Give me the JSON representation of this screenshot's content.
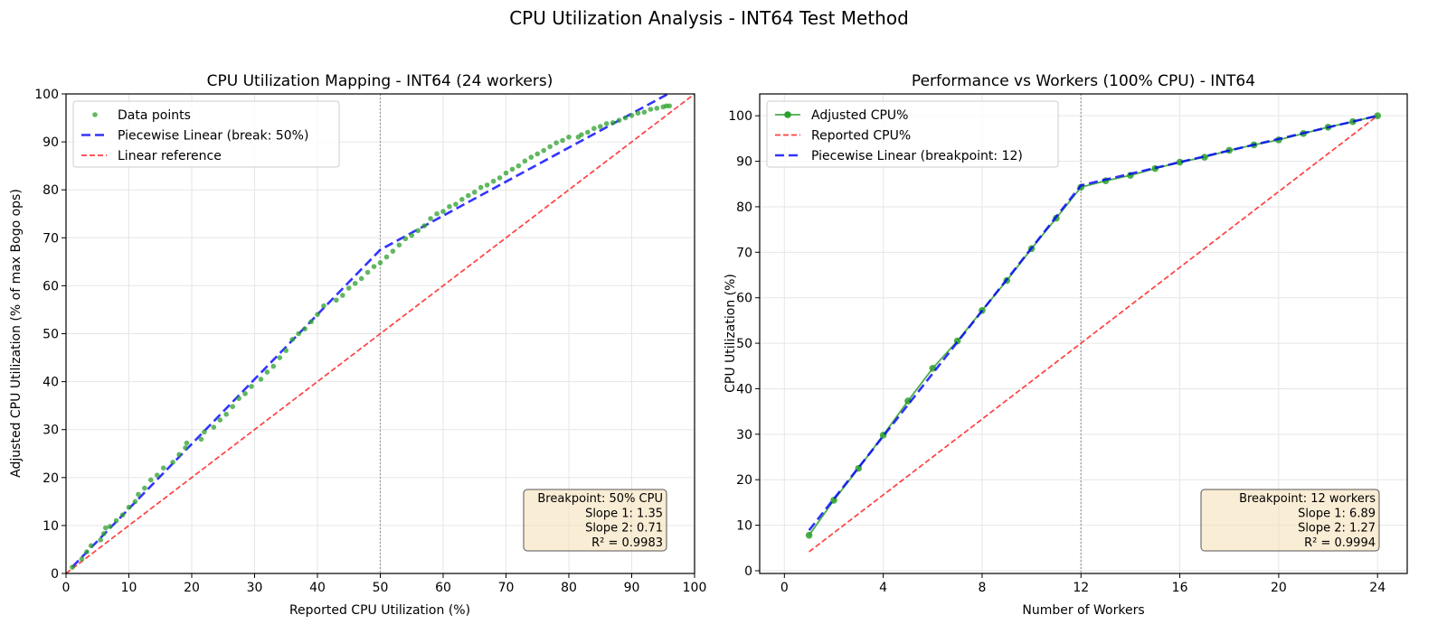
{
  "suptitle": "CPU Utilization Analysis - INT64 Test Method",
  "colors": {
    "data": "#2ca02c",
    "piecewise": "#0000ff",
    "reference": "#ff0000",
    "annotation_bg": "#f5deb3"
  },
  "chart_data": [
    {
      "type": "scatter",
      "title": "CPU Utilization Mapping - INT64 (24 workers)",
      "xlabel": "Reported CPU Utilization (%)",
      "ylabel": "Adjusted CPU Utilization (% of max Bogo ops)",
      "xlim": [
        0,
        100
      ],
      "ylim": [
        0,
        100
      ],
      "xticks": [
        0,
        10,
        20,
        30,
        40,
        50,
        60,
        70,
        80,
        90,
        100
      ],
      "yticks": [
        0,
        10,
        20,
        30,
        40,
        50,
        60,
        70,
        80,
        90,
        100
      ],
      "grid": true,
      "legend_position": "top-left",
      "breakpoint_line_x": 50,
      "series": [
        {
          "name": "Data points",
          "kind": "scatter",
          "points": [
            [
              1,
              1.3
            ],
            [
              2.5,
              3
            ],
            [
              3.3,
              4.5
            ],
            [
              4,
              5.8
            ],
            [
              5.5,
              7
            ],
            [
              6,
              8.3
            ],
            [
              6.3,
              9.5
            ],
            [
              7,
              9.8
            ],
            [
              8,
              11
            ],
            [
              9,
              12.2
            ],
            [
              10,
              13.8
            ],
            [
              11,
              15
            ],
            [
              11.5,
              16.5
            ],
            [
              12.5,
              17.8
            ],
            [
              13.5,
              19.5
            ],
            [
              14.5,
              20.5
            ],
            [
              15.5,
              22
            ],
            [
              17,
              23.2
            ],
            [
              18,
              24.8
            ],
            [
              19,
              26.2
            ],
            [
              19.2,
              27.2
            ],
            [
              21.5,
              28
            ],
            [
              22,
              29.5
            ],
            [
              23.5,
              30.5
            ],
            [
              24.5,
              32
            ],
            [
              25.5,
              33.2
            ],
            [
              26.5,
              34.8
            ],
            [
              27.5,
              36.5
            ],
            [
              28.5,
              37.5
            ],
            [
              29.5,
              39
            ],
            [
              31,
              40.5
            ],
            [
              32,
              42
            ],
            [
              33,
              43.2
            ],
            [
              34,
              45
            ],
            [
              35,
              46.5
            ],
            [
              36,
              48.8
            ],
            [
              37,
              50
            ],
            [
              38,
              51
            ],
            [
              39,
              52.5
            ],
            [
              40,
              54
            ],
            [
              41,
              55.8
            ],
            [
              43,
              57
            ],
            [
              44,
              58
            ],
            [
              45,
              59.5
            ],
            [
              46,
              60.5
            ],
            [
              47,
              61.5
            ],
            [
              48,
              62.8
            ],
            [
              49,
              64
            ],
            [
              50,
              64.8
            ],
            [
              51,
              66
            ],
            [
              52,
              67.2
            ],
            [
              53,
              68.5
            ],
            [
              54,
              69.8
            ],
            [
              55,
              70.5
            ],
            [
              56,
              71.5
            ],
            [
              57,
              72.5
            ],
            [
              58,
              74
            ],
            [
              59,
              75
            ],
            [
              60,
              75.5
            ],
            [
              61,
              76.5
            ],
            [
              62,
              77
            ],
            [
              63,
              78
            ],
            [
              64,
              78.8
            ],
            [
              65,
              79.5
            ],
            [
              66,
              80.5
            ],
            [
              67,
              81
            ],
            [
              68,
              81.8
            ],
            [
              69,
              82.5
            ],
            [
              70,
              83.5
            ],
            [
              71,
              84.3
            ],
            [
              72,
              85
            ],
            [
              73,
              86
            ],
            [
              74,
              86.8
            ],
            [
              75,
              87.5
            ],
            [
              76,
              88.2
            ],
            [
              77,
              89
            ],
            [
              78,
              89.8
            ],
            [
              79,
              90.3
            ],
            [
              80,
              91
            ],
            [
              81.5,
              91
            ],
            [
              82,
              91.5
            ],
            [
              83,
              92
            ],
            [
              84,
              92.8
            ],
            [
              85,
              93.2
            ],
            [
              86,
              93.8
            ],
            [
              87,
              94
            ],
            [
              88,
              94.5
            ],
            [
              89,
              95
            ],
            [
              90,
              95.5
            ],
            [
              91,
              96
            ],
            [
              92,
              96.2
            ],
            [
              93,
              96.8
            ],
            [
              94,
              97
            ],
            [
              95,
              97.3
            ],
            [
              95.5,
              97.5
            ],
            [
              96,
              97.5
            ]
          ]
        },
        {
          "name": "Piecewise Linear (break: 50%)",
          "kind": "dashed",
          "points": [
            [
              1,
              1.35
            ],
            [
              50,
              67.5
            ],
            [
              100,
              103
            ]
          ]
        },
        {
          "name": "Linear reference",
          "kind": "dashed-thin",
          "points": [
            [
              0,
              0
            ],
            [
              100,
              100
            ]
          ]
        }
      ],
      "annotation": [
        "Breakpoint: 50% CPU",
        "Slope 1: 1.35",
        "Slope 2: 0.71",
        "R² = 0.9983"
      ]
    },
    {
      "type": "line",
      "title": "Performance vs Workers (100% CPU) - INT64",
      "xlabel": "Number of Workers",
      "ylabel": "CPU Utilization (%)",
      "xlim": [
        -1,
        25.2
      ],
      "ylim": [
        -0.6,
        104.8
      ],
      "xticks": [
        0,
        4,
        8,
        12,
        16,
        20,
        24
      ],
      "yticks": [
        0,
        10,
        20,
        30,
        40,
        50,
        60,
        70,
        80,
        90,
        100
      ],
      "grid": true,
      "legend_position": "top-left",
      "breakpoint_line_x": 12,
      "series": [
        {
          "name": "Adjusted CPU%",
          "kind": "line-markers",
          "points": [
            [
              1,
              7.8
            ],
            [
              2,
              15.5
            ],
            [
              3,
              22.5
            ],
            [
              4,
              29.8
            ],
            [
              5,
              37.3
            ],
            [
              6,
              44.5
            ],
            [
              7,
              50.5
            ],
            [
              8,
              57.2
            ],
            [
              9,
              63.8
            ],
            [
              10,
              70.8
            ],
            [
              11,
              77.5
            ],
            [
              12,
              84.3
            ],
            [
              13,
              85.7
            ],
            [
              14,
              86.9
            ],
            [
              15,
              88.4
            ],
            [
              16,
              89.8
            ],
            [
              17,
              90.9
            ],
            [
              18,
              92.4
            ],
            [
              19,
              93.6
            ],
            [
              20,
              94.7
            ],
            [
              21,
              96.1
            ],
            [
              22,
              97.5
            ],
            [
              23,
              98.7
            ],
            [
              24,
              100
            ]
          ]
        },
        {
          "name": "Reported CPU%",
          "kind": "dashed-thin",
          "points": [
            [
              1,
              4.17
            ],
            [
              24,
              100
            ]
          ]
        },
        {
          "name": "Piecewise Linear (breakpoint: 12)",
          "kind": "dashed",
          "points": [
            [
              1,
              8.9
            ],
            [
              12,
              84.7
            ],
            [
              24,
              100
            ]
          ]
        }
      ],
      "annotation": [
        "Breakpoint: 12 workers",
        "Slope 1: 6.89",
        "Slope 2: 1.27",
        "R² = 0.9994"
      ]
    }
  ]
}
